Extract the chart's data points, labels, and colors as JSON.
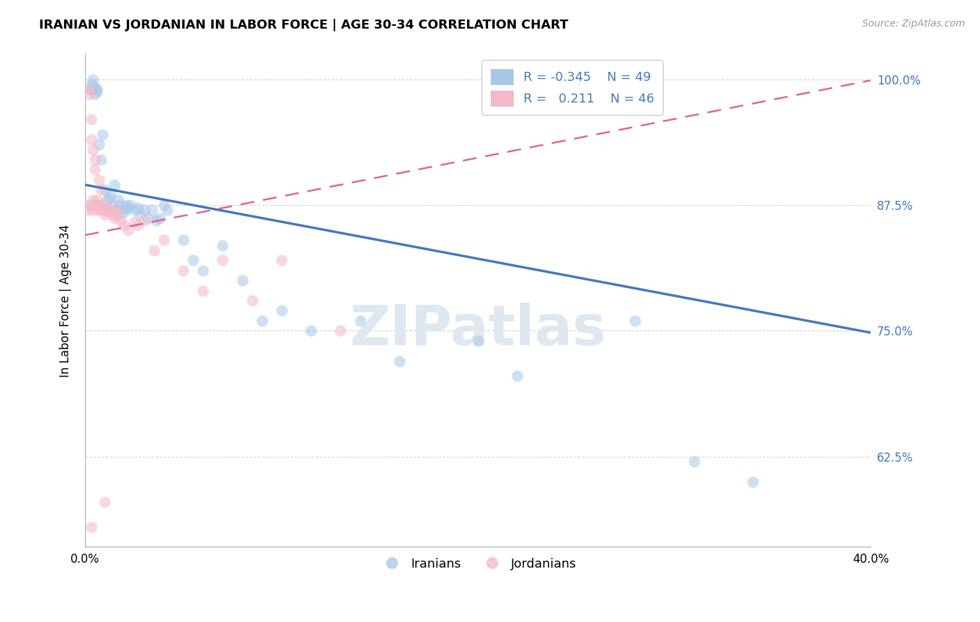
{
  "title": "IRANIAN VS JORDANIAN IN LABOR FORCE | AGE 30-34 CORRELATION CHART",
  "source": "Source: ZipAtlas.com",
  "xlabel_iranians": "Iranians",
  "xlabel_jordanians": "Jordanians",
  "ylabel": "In Labor Force | Age 30-34",
  "xlim": [
    0.0,
    0.4
  ],
  "ylim": [
    0.535,
    1.025
  ],
  "yticks": [
    0.625,
    0.75,
    0.875,
    1.0
  ],
  "ytick_labels": [
    "62.5%",
    "75.0%",
    "87.5%",
    "100.0%"
  ],
  "xticks": [
    0.0,
    0.05,
    0.1,
    0.15,
    0.2,
    0.25,
    0.3,
    0.35,
    0.4
  ],
  "legend_R_blue": "-0.345",
  "legend_N_blue": "49",
  "legend_R_pink": " 0.211",
  "legend_N_pink": "46",
  "blue_color": "#a8c8e8",
  "pink_color": "#f4b8c8",
  "blue_line_color": "#4477bb",
  "pink_line_color": "#dd6688",
  "watermark_color": "#dde8f0",
  "iranians_x": [
    0.003,
    0.003,
    0.004,
    0.005,
    0.005,
    0.006,
    0.006,
    0.007,
    0.008,
    0.009,
    0.01,
    0.011,
    0.012,
    0.013,
    0.014,
    0.015,
    0.016,
    0.017,
    0.018,
    0.019,
    0.02,
    0.021,
    0.022,
    0.023,
    0.025,
    0.027,
    0.028,
    0.03,
    0.032,
    0.034,
    0.036,
    0.038,
    0.04,
    0.042,
    0.05,
    0.055,
    0.06,
    0.07,
    0.08,
    0.09,
    0.1,
    0.115,
    0.14,
    0.16,
    0.2,
    0.22,
    0.28,
    0.31,
    0.34
  ],
  "iranians_y": [
    0.995,
    0.99,
    1.0,
    0.985,
    0.992,
    0.99,
    0.988,
    0.935,
    0.92,
    0.945,
    0.89,
    0.88,
    0.882,
    0.885,
    0.875,
    0.895,
    0.87,
    0.88,
    0.875,
    0.87,
    0.868,
    0.875,
    0.872,
    0.875,
    0.87,
    0.872,
    0.865,
    0.87,
    0.862,
    0.87,
    0.86,
    0.862,
    0.875,
    0.87,
    0.84,
    0.82,
    0.81,
    0.835,
    0.8,
    0.76,
    0.77,
    0.75,
    0.76,
    0.72,
    0.74,
    0.705,
    0.76,
    0.62,
    0.6
  ],
  "jordanians_x": [
    0.001,
    0.001,
    0.002,
    0.002,
    0.003,
    0.003,
    0.003,
    0.004,
    0.004,
    0.004,
    0.005,
    0.005,
    0.005,
    0.006,
    0.006,
    0.006,
    0.007,
    0.007,
    0.008,
    0.008,
    0.009,
    0.01,
    0.01,
    0.011,
    0.012,
    0.013,
    0.014,
    0.015,
    0.016,
    0.017,
    0.018,
    0.02,
    0.022,
    0.025,
    0.027,
    0.03,
    0.035,
    0.04,
    0.05,
    0.06,
    0.07,
    0.085,
    0.1,
    0.13,
    0.01,
    0.003
  ],
  "jordanians_y": [
    0.875,
    0.87,
    0.99,
    0.985,
    0.96,
    0.94,
    0.875,
    0.87,
    0.93,
    0.88,
    0.92,
    0.91,
    0.875,
    0.88,
    0.875,
    0.87,
    0.9,
    0.875,
    0.89,
    0.87,
    0.87,
    0.875,
    0.865,
    0.87,
    0.868,
    0.87,
    0.865,
    0.862,
    0.87,
    0.865,
    0.86,
    0.855,
    0.85,
    0.858,
    0.855,
    0.86,
    0.83,
    0.84,
    0.81,
    0.79,
    0.82,
    0.78,
    0.82,
    0.75,
    0.58,
    0.555
  ],
  "blue_line_x0": 0.0,
  "blue_line_x1": 0.4,
  "blue_line_y0": 0.895,
  "blue_line_y1": 0.748,
  "pink_line_x0": 0.0,
  "pink_line_x1": 0.13,
  "pink_line_y0": 0.845,
  "pink_line_y1": 0.895
}
